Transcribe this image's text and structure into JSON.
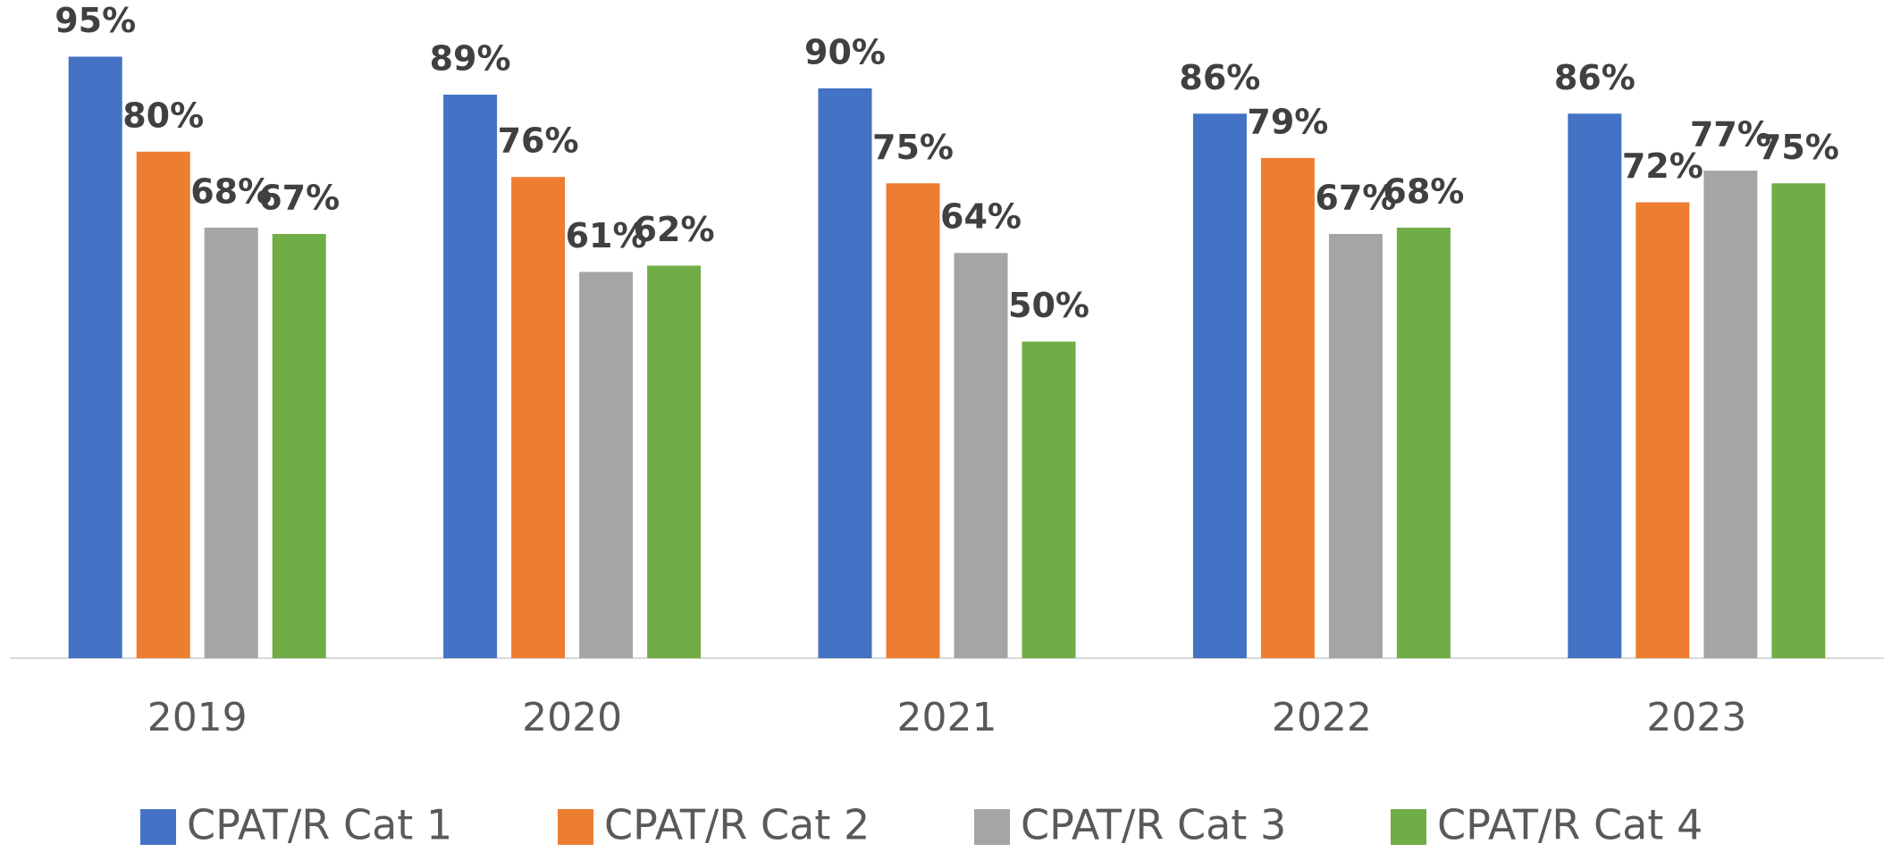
{
  "chart_data": {
    "type": "bar",
    "categories": [
      "2019",
      "2020",
      "2021",
      "2022",
      "2023"
    ],
    "series": [
      {
        "name": "CPAT/R Cat 1",
        "color": "#4472c4",
        "values": [
          95,
          89,
          90,
          86,
          86
        ],
        "value_labels": [
          "95%",
          "89%",
          "90%",
          "86%",
          "86%"
        ]
      },
      {
        "name": "CPAT/R Cat 2",
        "color": "#ed7d31",
        "values": [
          80,
          76,
          75,
          79,
          72
        ],
        "value_labels": [
          "80%",
          "76%",
          "75%",
          "79%",
          "72%"
        ]
      },
      {
        "name": "CPAT/R Cat 3",
        "color": "#a5a5a5",
        "values": [
          68,
          61,
          64,
          67,
          77
        ],
        "value_labels": [
          "68%",
          "61%",
          "64%",
          "67%",
          "77%"
        ]
      },
      {
        "name": "CPAT/R Cat 4",
        "color": "#70ad47",
        "values": [
          67,
          62,
          50,
          68,
          75
        ],
        "value_labels": [
          "67%",
          "62%",
          "50%",
          "68%",
          "75%"
        ]
      }
    ],
    "ylim": [
      0,
      100
    ]
  }
}
